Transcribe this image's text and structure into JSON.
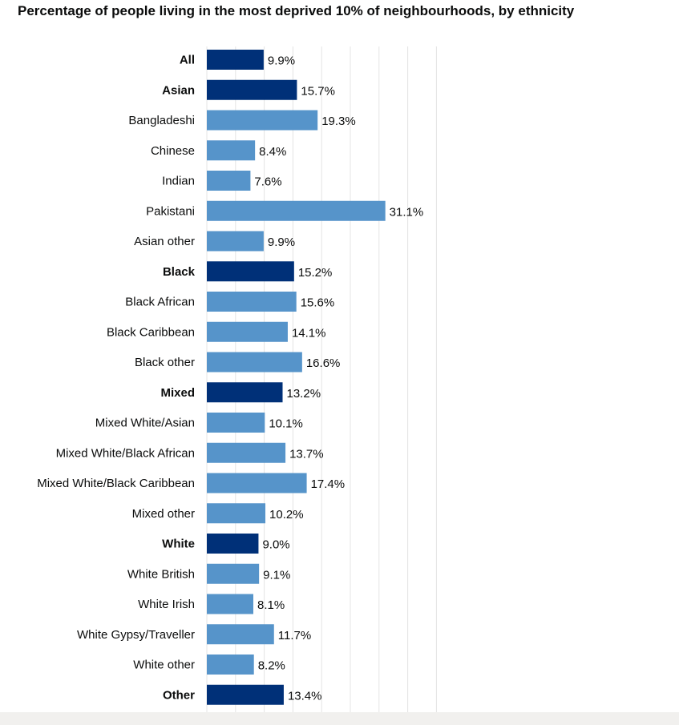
{
  "chart_data": {
    "type": "bar",
    "orientation": "horizontal",
    "title": "Percentage of people living in the most deprived 10% of neighbourhoods, by ethnicity",
    "xlabel": "",
    "ylabel": "",
    "xlim": [
      0,
      40
    ],
    "grid": true,
    "value_suffix": "%",
    "colors": {
      "group": "#003078",
      "subgroup": "#5694ca"
    },
    "categories": [
      "All",
      "Asian",
      "Bangladeshi",
      "Chinese",
      "Indian",
      "Pakistani",
      "Asian other",
      "Black",
      "Black African",
      "Black Caribbean",
      "Black other",
      "Mixed",
      "Mixed White/Asian",
      "Mixed White/Black African",
      "Mixed White/Black Caribbean",
      "Mixed other",
      "White",
      "White British",
      "White Irish",
      "White Gypsy/Traveller",
      "White other",
      "Other"
    ],
    "values": [
      9.9,
      15.7,
      19.3,
      8.4,
      7.6,
      31.1,
      9.9,
      15.2,
      15.6,
      14.1,
      16.6,
      13.2,
      10.1,
      13.7,
      17.4,
      10.2,
      9.0,
      9.1,
      8.1,
      11.7,
      8.2,
      13.4
    ],
    "value_labels": [
      "9.9%",
      "15.7%",
      "19.3%",
      "8.4%",
      "7.6%",
      "31.1%",
      "9.9%",
      "15.2%",
      "15.6%",
      "14.1%",
      "16.6%",
      "13.2%",
      "10.1%",
      "13.7%",
      "17.4%",
      "10.2%",
      "9.0%",
      "9.1%",
      "8.1%",
      "11.7%",
      "8.2%",
      "13.4%"
    ],
    "is_group": [
      true,
      true,
      false,
      false,
      false,
      false,
      false,
      true,
      false,
      false,
      false,
      true,
      false,
      false,
      false,
      false,
      true,
      false,
      false,
      false,
      false,
      true
    ]
  }
}
